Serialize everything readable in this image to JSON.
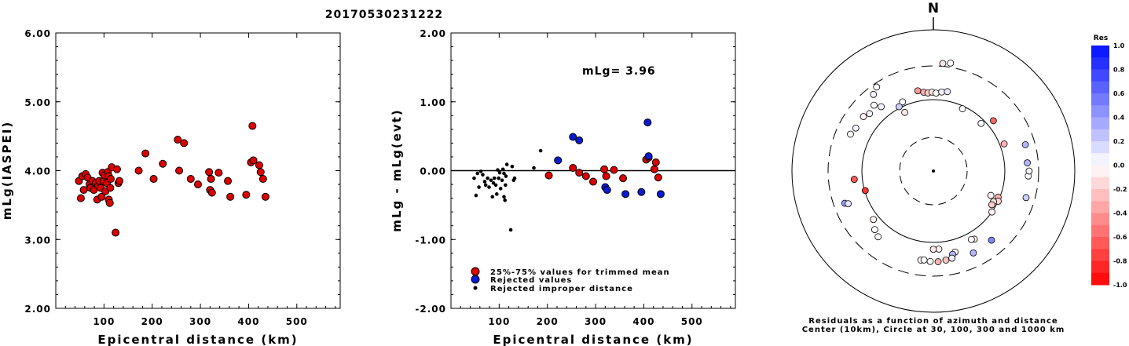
{
  "title": "20170530231222",
  "colors": {
    "red": "#dd0000",
    "blue": "#0a1ad0",
    "black": "#000000"
  },
  "chart_data": [
    {
      "type": "scatter",
      "name": "magnitude-vs-distance",
      "xlabel": "Epicentral distance (km)",
      "ylabel": "mLg(IASPEI)",
      "xlim": [
        0,
        590
      ],
      "ylim": [
        2.0,
        6.0
      ],
      "xticks": [
        "100",
        "200",
        "300",
        "400",
        "500"
      ],
      "yticks": [
        "2.00",
        "3.00",
        "4.00",
        "5.00",
        "6.00"
      ],
      "points": [
        [
          48,
          3.85
        ],
        [
          52,
          3.6
        ],
        [
          55,
          3.92
        ],
        [
          58,
          3.72
        ],
        [
          62,
          3.95
        ],
        [
          66,
          3.9
        ],
        [
          70,
          3.8
        ],
        [
          72,
          3.75
        ],
        [
          76,
          3.85
        ],
        [
          79,
          3.72
        ],
        [
          83,
          3.82
        ],
        [
          86,
          3.58
        ],
        [
          88,
          3.78
        ],
        [
          90,
          3.85
        ],
        [
          93,
          3.75
        ],
        [
          95,
          3.62
        ],
        [
          97,
          3.97
        ],
        [
          99,
          3.85
        ],
        [
          101,
          3.93
        ],
        [
          103,
          3.7
        ],
        [
          106,
          3.82
        ],
        [
          108,
          3.98
        ],
        [
          110,
          3.58
        ],
        [
          110,
          3.92
        ],
        [
          112,
          3.53
        ],
        [
          113,
          3.75
        ],
        [
          114,
          3.88
        ],
        [
          116,
          4.05
        ],
        [
          124,
          3.1
        ],
        [
          127,
          4.02
        ],
        [
          130,
          3.82
        ],
        [
          132,
          3.85
        ],
        [
          172,
          4.0
        ],
        [
          186,
          4.25
        ],
        [
          203,
          3.88
        ],
        [
          222,
          4.1
        ],
        [
          253,
          4.45
        ],
        [
          256,
          4.0
        ],
        [
          266,
          4.4
        ],
        [
          280,
          3.88
        ],
        [
          295,
          3.8
        ],
        [
          318,
          3.98
        ],
        [
          320,
          3.72
        ],
        [
          322,
          3.88
        ],
        [
          324,
          3.68
        ],
        [
          338,
          3.97
        ],
        [
          357,
          3.85
        ],
        [
          362,
          3.62
        ],
        [
          395,
          3.65
        ],
        [
          405,
          4.12
        ],
        [
          408,
          4.65
        ],
        [
          410,
          4.15
        ],
        [
          422,
          4.08
        ],
        [
          425,
          3.98
        ],
        [
          430,
          3.88
        ],
        [
          435,
          3.62
        ]
      ]
    },
    {
      "type": "scatter",
      "name": "residual-vs-distance",
      "xlabel": "Epicentral distance (km)",
      "ylabel": "mLg - mLg(evt)",
      "annotation": "mLg= 3.96",
      "xlim": [
        0,
        590
      ],
      "ylim": [
        -2.0,
        2.0
      ],
      "xticks": [
        "100",
        "200",
        "300",
        "400",
        "500"
      ],
      "yticks": [
        "-2.00",
        "-1.00",
        "0.00",
        "1.00",
        "2.00"
      ],
      "legend": [
        "25%-75% values for trimmed mean",
        "Rejected values",
        "Rejected improper distance"
      ],
      "series": [
        {
          "name": "25%-75% values for trimmed mean",
          "style": "red",
          "points": [
            [
              203,
              -0.07
            ],
            [
              253,
              0.04
            ],
            [
              266,
              -0.03
            ],
            [
              280,
              -0.08
            ],
            [
              295,
              -0.16
            ],
            [
              318,
              0.02
            ],
            [
              322,
              -0.08
            ],
            [
              338,
              0.01
            ],
            [
              357,
              -0.11
            ],
            [
              405,
              0.16
            ],
            [
              410,
              0.19
            ],
            [
              422,
              0.02
            ],
            [
              425,
              0.12
            ],
            [
              430,
              -0.1
            ]
          ]
        },
        {
          "name": "Rejected values",
          "style": "blue",
          "points": [
            [
              222,
              0.15
            ],
            [
              253,
              0.49
            ],
            [
              266,
              0.44
            ],
            [
              320,
              -0.24
            ],
            [
              324,
              -0.28
            ],
            [
              362,
              -0.34
            ],
            [
              395,
              -0.31
            ],
            [
              408,
              0.7
            ],
            [
              410,
              0.21
            ],
            [
              435,
              -0.34
            ]
          ]
        },
        {
          "name": "Rejected improper distance",
          "style": "black",
          "points": [
            [
              48,
              -0.11
            ],
            [
              52,
              -0.36
            ],
            [
              55,
              -0.04
            ],
            [
              58,
              -0.24
            ],
            [
              62,
              -0.01
            ],
            [
              66,
              -0.06
            ],
            [
              70,
              -0.16
            ],
            [
              72,
              -0.21
            ],
            [
              76,
              -0.11
            ],
            [
              79,
              -0.24
            ],
            [
              83,
              -0.14
            ],
            [
              86,
              -0.38
            ],
            [
              88,
              -0.18
            ],
            [
              90,
              -0.11
            ],
            [
              93,
              -0.21
            ],
            [
              95,
              -0.34
            ],
            [
              97,
              0.01
            ],
            [
              99,
              -0.11
            ],
            [
              101,
              -0.03
            ],
            [
              103,
              -0.26
            ],
            [
              106,
              -0.14
            ],
            [
              108,
              0.02
            ],
            [
              110,
              -0.38
            ],
            [
              110,
              -0.04
            ],
            [
              112,
              -0.43
            ],
            [
              113,
              -0.21
            ],
            [
              114,
              -0.08
            ],
            [
              116,
              0.09
            ],
            [
              124,
              -0.86
            ],
            [
              127,
              0.06
            ],
            [
              130,
              -0.14
            ],
            [
              132,
              -0.11
            ],
            [
              172,
              0.04
            ],
            [
              186,
              0.29
            ]
          ]
        }
      ]
    },
    {
      "type": "scatter",
      "name": "residual-polar-plot",
      "north_label": "N",
      "caption_line1": "Residuals as a function of azimuth and distance",
      "caption_line2": "Center (10km), Circle at 30, 100, 300 and 1000 km",
      "colorbar_title": "Res",
      "colorbar_ticks": [
        "1.0",
        "0.8",
        "0.6",
        "0.4",
        "0.2",
        "0.0",
        "-0.2",
        "-0.4",
        "-0.6",
        "-0.8",
        "-1.0"
      ],
      "points_azimuth_distance_residual": [
        [
          5,
          330,
          -0.1
        ],
        [
          9,
          345,
          0.0
        ],
        [
          -38,
          232,
          0.05
        ],
        [
          -34,
          265,
          0.0
        ],
        [
          -11,
          140,
          -0.4
        ],
        [
          -7,
          130,
          -0.3
        ],
        [
          -4,
          125,
          -0.2
        ],
        [
          -1,
          128,
          -0.1
        ],
        [
          2,
          124,
          0.0
        ],
        [
          6,
          130,
          0.05
        ],
        [
          10,
          135,
          0.1
        ],
        [
          -24,
          115,
          0.0
        ],
        [
          -26,
          82,
          -0.1
        ],
        [
          -28,
          105,
          0.2
        ],
        [
          -39,
          145,
          0.05
        ],
        [
          -42,
          175,
          0.0
        ],
        [
          -48,
          160,
          0.05
        ],
        [
          -52,
          175,
          -0.05
        ],
        [
          -61,
          175,
          0.05
        ],
        [
          -66,
          187,
          0.0
        ],
        [
          25,
          92,
          0.0
        ],
        [
          45,
          88,
          0.0
        ],
        [
          50,
          125,
          -0.6
        ],
        [
          69,
          115,
          -0.3
        ],
        [
          85,
          210,
          0.3
        ],
        [
          93,
          215,
          0.0
        ],
        [
          74,
          220,
          0.3
        ],
        [
          90,
          220,
          0.05
        ],
        [
          106,
          225,
          0.2
        ],
        [
          113,
          75,
          -0.05
        ],
        [
          112,
          95,
          -0.3
        ],
        [
          115,
          100,
          -0.15
        ],
        [
          117,
          88,
          -0.1
        ],
        [
          120,
          88,
          -0.2
        ],
        [
          125,
          100,
          -0.05
        ],
        [
          149,
          130,
          -0.1
        ],
        [
          -96,
          130,
          -0.65
        ],
        [
          -106,
          98,
          -0.8
        ],
        [
          -110,
          210,
          0.4
        ],
        [
          -111,
          190,
          0.1
        ],
        [
          -129,
          120,
          -0.05
        ],
        [
          -135,
          145,
          0.0
        ],
        [
          -140,
          160,
          0.0
        ],
        [
          176,
          125,
          -0.05
        ],
        [
          180,
          125,
          -0.1
        ],
        [
          151,
          125,
          0.0
        ],
        [
          165,
          150,
          -0.05
        ],
        [
          167,
          158,
          0.3
        ],
        [
          172,
          183,
          -0.25
        ],
        [
          177,
          188,
          -0.3
        ],
        [
          182,
          186,
          0.0
        ],
        [
          188,
          183,
          -0.05
        ],
        [
          154,
          190,
          0.3
        ],
        [
          168,
          178,
          0.05
        ],
        [
          140,
          185,
          0.5
        ],
        [
          186,
          180,
          0.0
        ]
      ]
    }
  ]
}
